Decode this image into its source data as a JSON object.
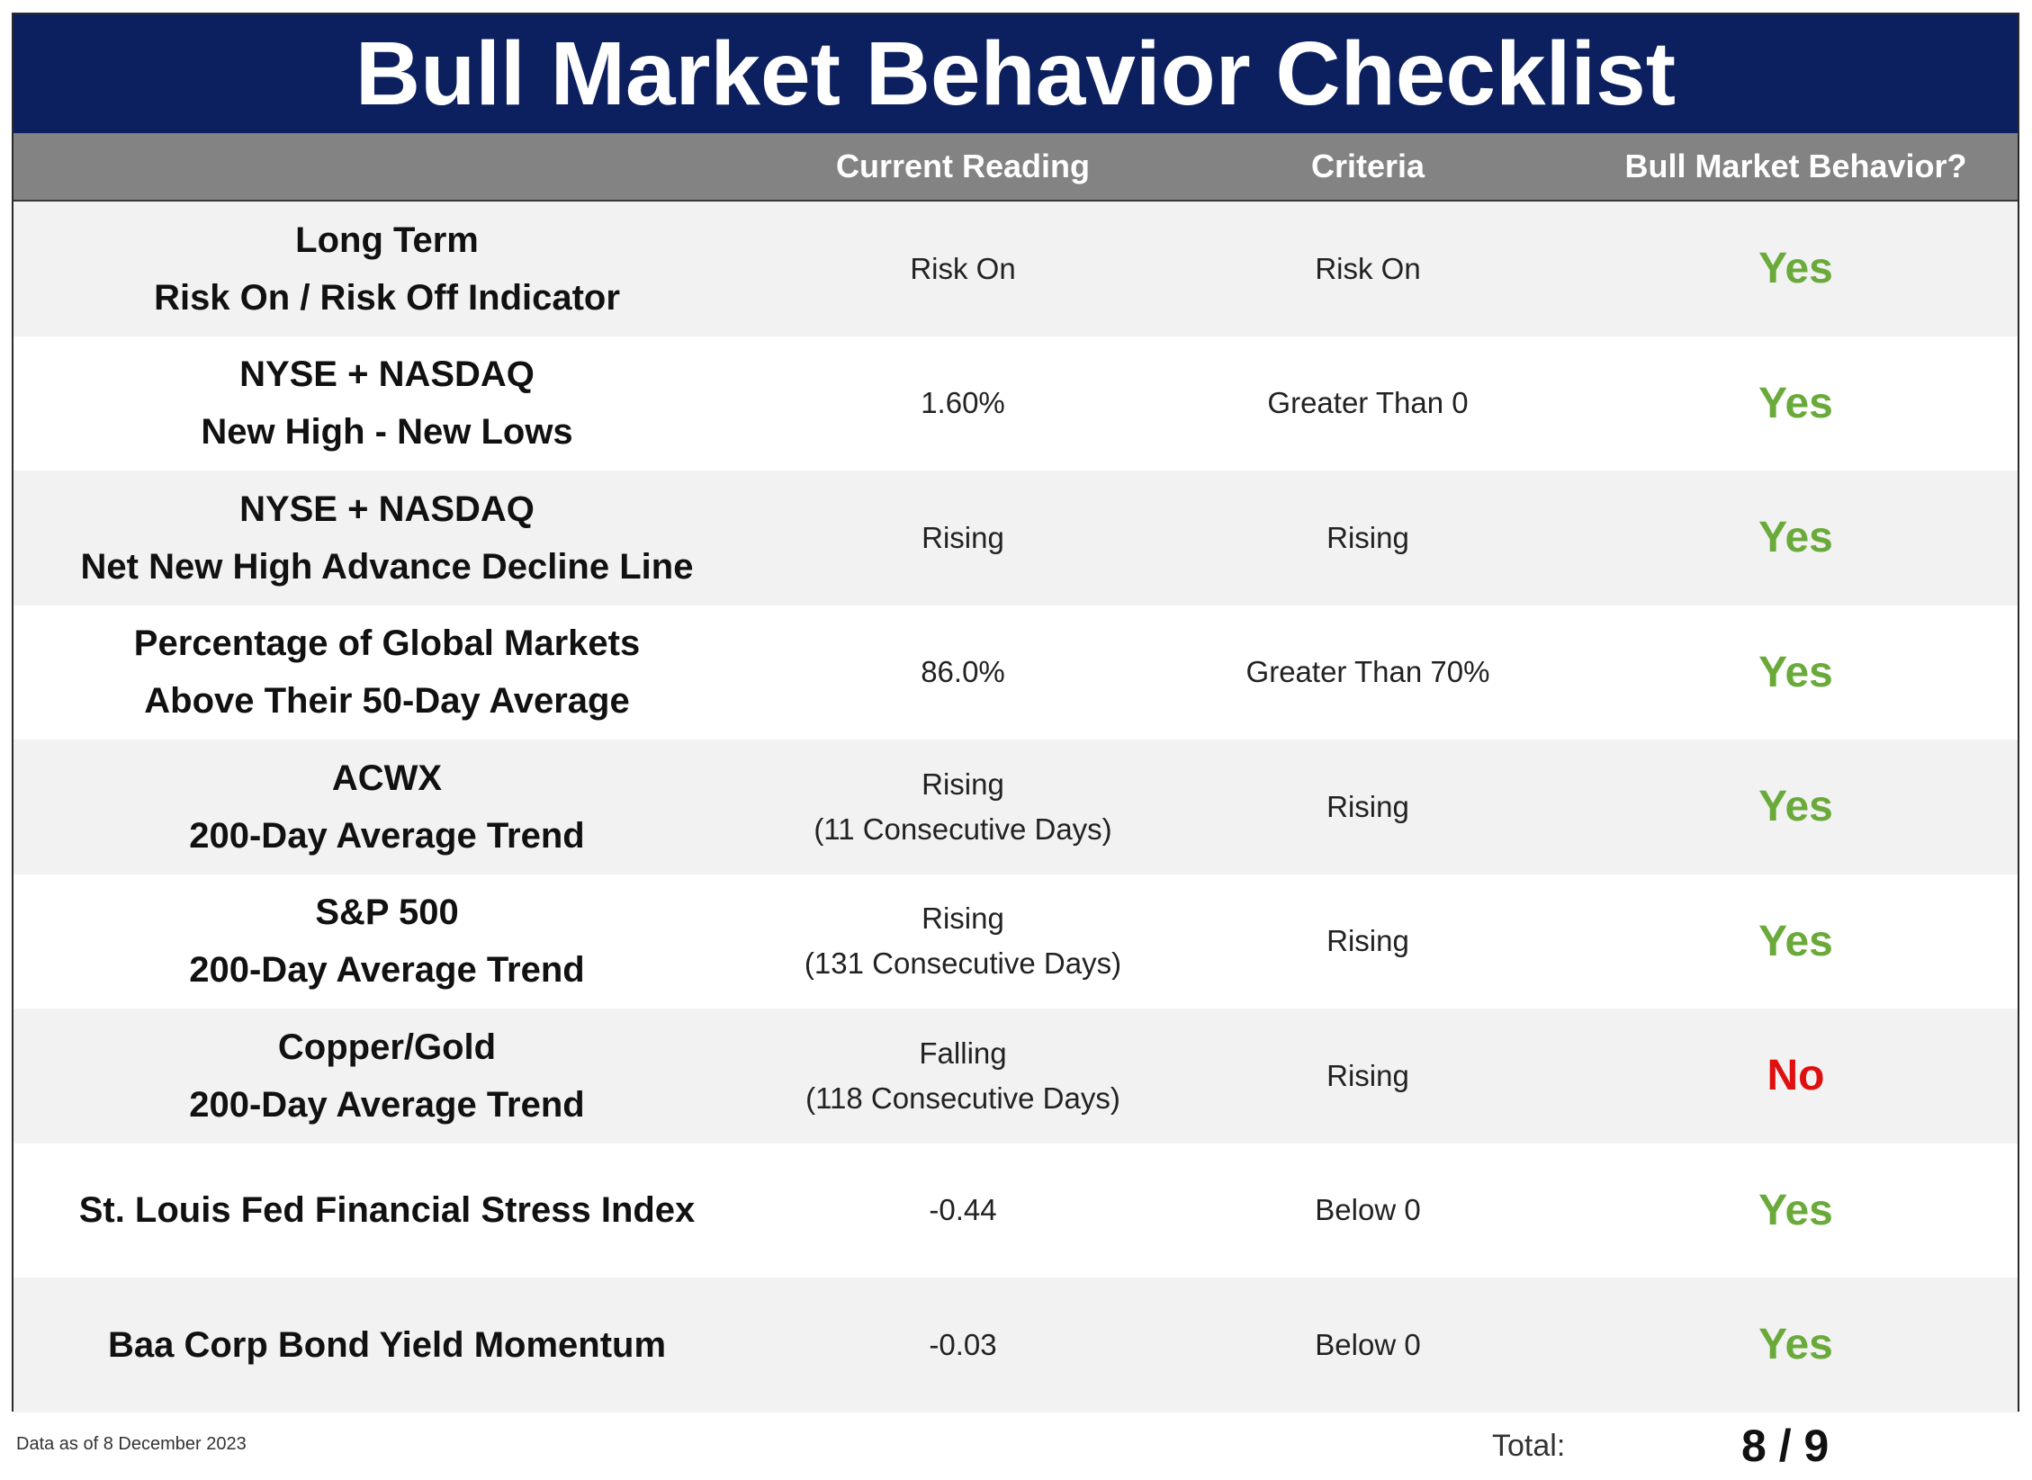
{
  "title": "Bull Market Behavior Checklist",
  "colors": {
    "title_bg": "#0c1f5e",
    "header_bg": "#838383",
    "yes": "#6aaa3a",
    "no": "#e01010",
    "row_shade": "#f2f2f2"
  },
  "header": {
    "col1": "",
    "col2": "Current Reading",
    "col3": "Criteria",
    "col4": "Bull Market Behavior?"
  },
  "rows": [
    {
      "indicator": [
        "Long Term",
        "Risk On / Risk Off Indicator"
      ],
      "current": [
        "Risk On"
      ],
      "criteria": "Risk On",
      "verdict": "Yes"
    },
    {
      "indicator": [
        "NYSE + NASDAQ",
        "New High - New Lows"
      ],
      "current": [
        "1.60%"
      ],
      "criteria": "Greater Than 0",
      "verdict": "Yes"
    },
    {
      "indicator": [
        "NYSE + NASDAQ",
        "Net New High Advance Decline Line"
      ],
      "current": [
        "Rising"
      ],
      "criteria": "Rising",
      "verdict": "Yes"
    },
    {
      "indicator": [
        "Percentage of Global Markets",
        "Above Their 50-Day Average"
      ],
      "current": [
        "86.0%"
      ],
      "criteria": "Greater Than 70%",
      "verdict": "Yes"
    },
    {
      "indicator": [
        "ACWX",
        "200-Day Average Trend"
      ],
      "current": [
        "Rising",
        "(11 Consecutive Days)"
      ],
      "criteria": "Rising",
      "verdict": "Yes"
    },
    {
      "indicator": [
        "S&P 500",
        "200-Day Average Trend"
      ],
      "current": [
        "Rising",
        "(131 Consecutive Days)"
      ],
      "criteria": "Rising",
      "verdict": "Yes"
    },
    {
      "indicator": [
        "Copper/Gold",
        "200-Day Average Trend"
      ],
      "current": [
        "Falling",
        "(118 Consecutive Days)"
      ],
      "criteria": "Rising",
      "verdict": "No"
    },
    {
      "indicator": [
        "St. Louis Fed Financial Stress Index"
      ],
      "current": [
        "-0.44"
      ],
      "criteria": "Below 0",
      "verdict": "Yes"
    },
    {
      "indicator": [
        "Baa Corp Bond Yield Momentum"
      ],
      "current": [
        "-0.03"
      ],
      "criteria": "Below 0",
      "verdict": "Yes"
    }
  ],
  "footer": {
    "data_as_of": "Data as of 8 December 2023",
    "total_label": "Total:",
    "total_score": "8 / 9"
  }
}
